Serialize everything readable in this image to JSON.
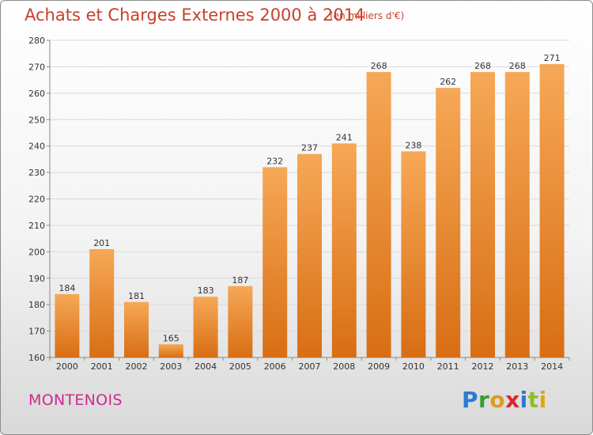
{
  "title": "Achats et Charges Externes 2000 à 2014",
  "unit_note": "(en milliers d'€)",
  "location": "MONTENOIS",
  "logo": [
    "P",
    "r",
    "o",
    "x",
    "i",
    "t",
    "i"
  ],
  "colors": {
    "bar_top": "#f6a856",
    "bar_bottom": "#d86e14",
    "title": "#c8402a",
    "location": "#cc2b8f"
  },
  "chart_data": {
    "type": "bar",
    "title": "Achats et Charges Externes 2000 à 2014",
    "subtitle": "(en milliers d'€)",
    "categories": [
      "2000",
      "2001",
      "2002",
      "2003",
      "2004",
      "2005",
      "2006",
      "2007",
      "2008",
      "2009",
      "2010",
      "2011",
      "2012",
      "2013",
      "2014"
    ],
    "values": [
      184,
      201,
      181,
      165,
      183,
      187,
      232,
      237,
      241,
      268,
      238,
      262,
      268,
      268,
      271
    ],
    "ylim": [
      160,
      280
    ],
    "yticks": [
      160,
      170,
      180,
      190,
      200,
      210,
      220,
      230,
      240,
      250,
      260,
      270,
      280
    ],
    "grid": true
  }
}
